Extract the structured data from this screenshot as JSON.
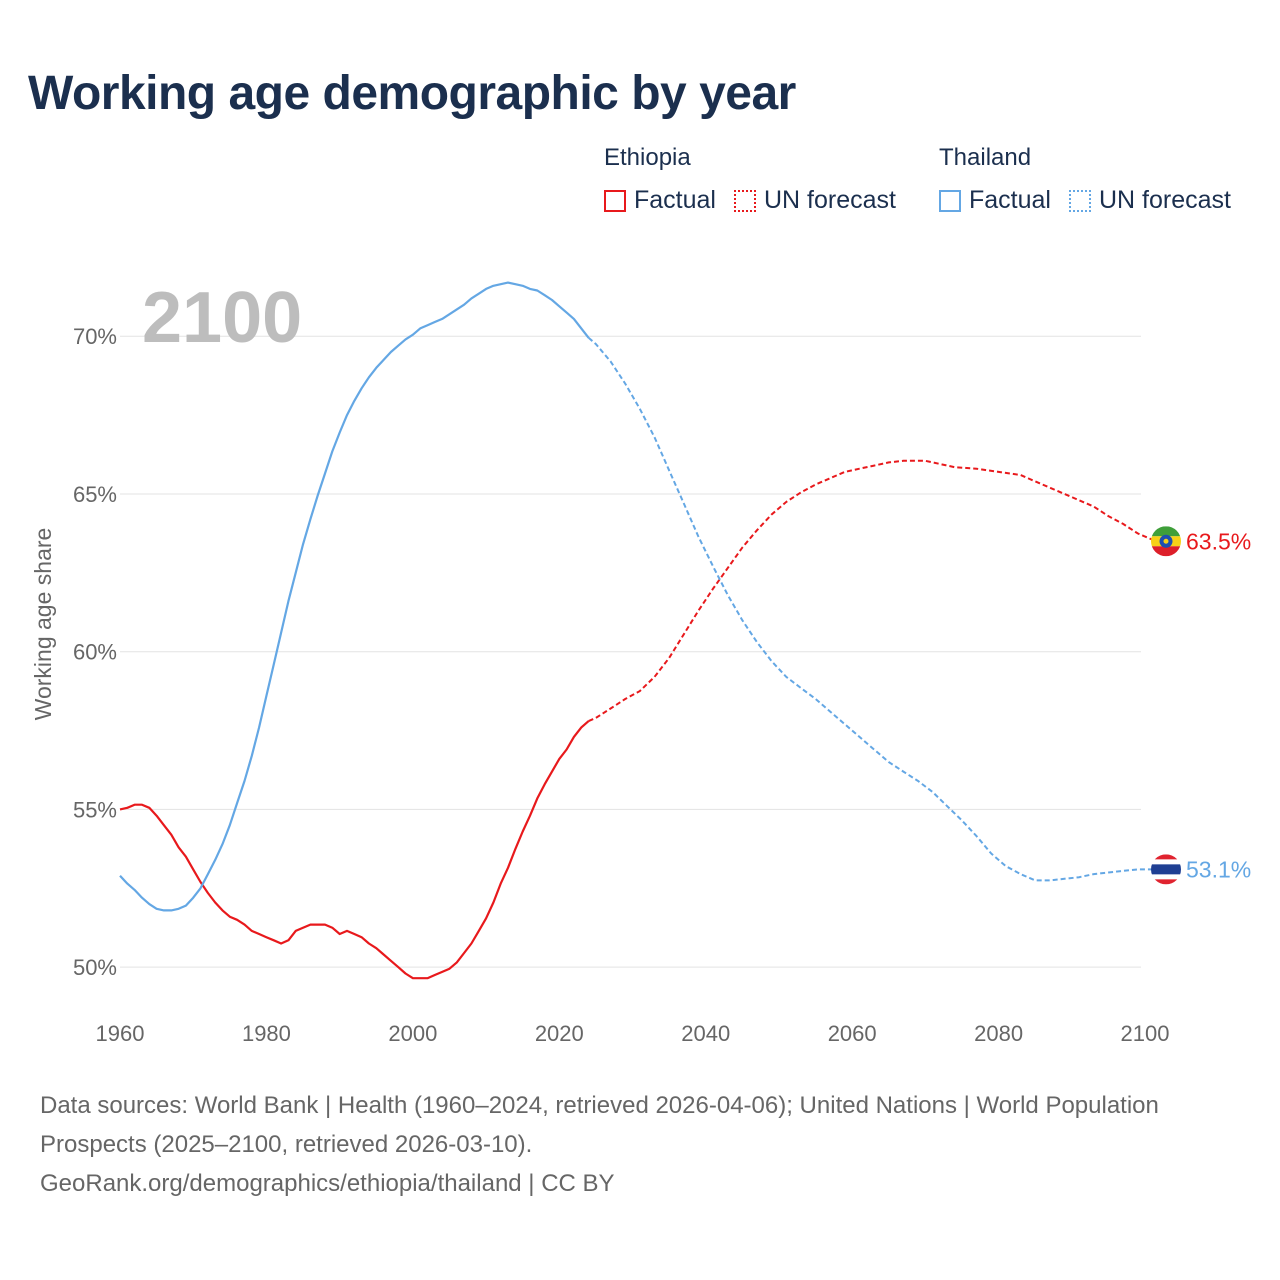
{
  "title": "Working age demographic by year",
  "legend": {
    "groups": [
      {
        "name": "Ethiopia",
        "color": "#e8191c",
        "factual_label": "Factual",
        "forecast_label": "UN forecast"
      },
      {
        "name": "Thailand",
        "color": "#64a7e4",
        "factual_label": "Factual",
        "forecast_label": "UN forecast"
      }
    ]
  },
  "footer": {
    "sources": "Data sources: World Bank | Health (1960–2024, retrieved 2026-04-06); United Nations | World Population Prospects (2025–2100, retrieved 2026-03-10).",
    "link": "GeoRank.org/demographics/ethiopia/thailand | CC BY"
  },
  "chart_data": {
    "type": "line",
    "title": "Working age demographic by year",
    "current_year": "2100",
    "xlabel": "",
    "ylabel": "Working age share",
    "xlim": [
      1960,
      2103
    ],
    "ylim": [
      48.8,
      72.1
    ],
    "x_ticks": [
      1960,
      1980,
      2000,
      2020,
      2040,
      2060,
      2080,
      2100
    ],
    "y_ticks": [
      50,
      55,
      60,
      65,
      70
    ],
    "y_tick_labels": [
      "50%",
      "55%",
      "60%",
      "65%",
      "70%"
    ],
    "grid": true,
    "factual_end_year": 2024,
    "series": [
      {
        "name": "Ethiopia",
        "color": "#e8191c",
        "end_label": "63.5%",
        "flag": "ethiopia-flag",
        "points": [
          [
            1960,
            55.0
          ],
          [
            1961,
            55.05
          ],
          [
            1962,
            55.15
          ],
          [
            1963,
            55.15
          ],
          [
            1964,
            55.05
          ],
          [
            1965,
            54.8
          ],
          [
            1966,
            54.5
          ],
          [
            1967,
            54.2
          ],
          [
            1968,
            53.8
          ],
          [
            1969,
            53.5
          ],
          [
            1970,
            53.1
          ],
          [
            1971,
            52.7
          ],
          [
            1972,
            52.35
          ],
          [
            1973,
            52.05
          ],
          [
            1974,
            51.8
          ],
          [
            1975,
            51.6
          ],
          [
            1976,
            51.5
          ],
          [
            1977,
            51.35
          ],
          [
            1978,
            51.15
          ],
          [
            1979,
            51.05
          ],
          [
            1980,
            50.95
          ],
          [
            1981,
            50.85
          ],
          [
            1982,
            50.75
          ],
          [
            1983,
            50.85
          ],
          [
            1984,
            51.15
          ],
          [
            1985,
            51.25
          ],
          [
            1986,
            51.35
          ],
          [
            1987,
            51.35
          ],
          [
            1988,
            51.35
          ],
          [
            1989,
            51.25
          ],
          [
            1990,
            51.05
          ],
          [
            1991,
            51.15
          ],
          [
            1992,
            51.05
          ],
          [
            1993,
            50.95
          ],
          [
            1994,
            50.75
          ],
          [
            1995,
            50.6
          ],
          [
            1996,
            50.4
          ],
          [
            1997,
            50.2
          ],
          [
            1998,
            50.0
          ],
          [
            1999,
            49.8
          ],
          [
            2000,
            49.65
          ],
          [
            2001,
            49.65
          ],
          [
            2002,
            49.65
          ],
          [
            2003,
            49.75
          ],
          [
            2004,
            49.85
          ],
          [
            2005,
            49.95
          ],
          [
            2006,
            50.15
          ],
          [
            2007,
            50.45
          ],
          [
            2008,
            50.75
          ],
          [
            2009,
            51.15
          ],
          [
            2010,
            51.55
          ],
          [
            2011,
            52.05
          ],
          [
            2012,
            52.65
          ],
          [
            2013,
            53.15
          ],
          [
            2014,
            53.75
          ],
          [
            2015,
            54.3
          ],
          [
            2016,
            54.8
          ],
          [
            2017,
            55.35
          ],
          [
            2018,
            55.8
          ],
          [
            2019,
            56.2
          ],
          [
            2020,
            56.6
          ],
          [
            2021,
            56.9
          ],
          [
            2022,
            57.3
          ],
          [
            2023,
            57.6
          ],
          [
            2024,
            57.8
          ],
          [
            2025,
            57.9
          ],
          [
            2027,
            58.2
          ],
          [
            2029,
            58.5
          ],
          [
            2031,
            58.75
          ],
          [
            2033,
            59.2
          ],
          [
            2035,
            59.8
          ],
          [
            2037,
            60.55
          ],
          [
            2039,
            61.3
          ],
          [
            2041,
            62.0
          ],
          [
            2043,
            62.65
          ],
          [
            2045,
            63.3
          ],
          [
            2047,
            63.85
          ],
          [
            2049,
            64.35
          ],
          [
            2051,
            64.75
          ],
          [
            2053,
            65.05
          ],
          [
            2055,
            65.3
          ],
          [
            2057,
            65.5
          ],
          [
            2059,
            65.7
          ],
          [
            2061,
            65.8
          ],
          [
            2063,
            65.9
          ],
          [
            2065,
            66.0
          ],
          [
            2067,
            66.05
          ],
          [
            2070,
            66.05
          ],
          [
            2072,
            65.95
          ],
          [
            2074,
            65.85
          ],
          [
            2077,
            65.8
          ],
          [
            2080,
            65.7
          ],
          [
            2083,
            65.6
          ],
          [
            2085,
            65.4
          ],
          [
            2087,
            65.2
          ],
          [
            2090,
            64.9
          ],
          [
            2093,
            64.6
          ],
          [
            2095,
            64.3
          ],
          [
            2097,
            64.05
          ],
          [
            2099,
            63.75
          ],
          [
            2101,
            63.55
          ],
          [
            2103,
            63.5
          ]
        ]
      },
      {
        "name": "Thailand",
        "color": "#64a7e4",
        "end_label": "53.1%",
        "flag": "thailand-flag",
        "points": [
          [
            1960,
            52.9
          ],
          [
            1961,
            52.65
          ],
          [
            1962,
            52.45
          ],
          [
            1963,
            52.2
          ],
          [
            1964,
            52.0
          ],
          [
            1965,
            51.85
          ],
          [
            1966,
            51.8
          ],
          [
            1967,
            51.8
          ],
          [
            1968,
            51.85
          ],
          [
            1969,
            51.95
          ],
          [
            1970,
            52.2
          ],
          [
            1971,
            52.5
          ],
          [
            1972,
            52.95
          ],
          [
            1973,
            53.4
          ],
          [
            1974,
            53.9
          ],
          [
            1975,
            54.5
          ],
          [
            1976,
            55.2
          ],
          [
            1977,
            55.9
          ],
          [
            1978,
            56.7
          ],
          [
            1979,
            57.6
          ],
          [
            1980,
            58.6
          ],
          [
            1981,
            59.6
          ],
          [
            1982,
            60.6
          ],
          [
            1983,
            61.6
          ],
          [
            1984,
            62.5
          ],
          [
            1985,
            63.4
          ],
          [
            1986,
            64.2
          ],
          [
            1987,
            64.95
          ],
          [
            1988,
            65.65
          ],
          [
            1989,
            66.35
          ],
          [
            1990,
            66.95
          ],
          [
            1991,
            67.5
          ],
          [
            1992,
            67.95
          ],
          [
            1993,
            68.35
          ],
          [
            1994,
            68.7
          ],
          [
            1995,
            69.0
          ],
          [
            1996,
            69.25
          ],
          [
            1997,
            69.5
          ],
          [
            1998,
            69.7
          ],
          [
            1999,
            69.9
          ],
          [
            2000,
            70.05
          ],
          [
            2001,
            70.25
          ],
          [
            2002,
            70.35
          ],
          [
            2003,
            70.45
          ],
          [
            2004,
            70.55
          ],
          [
            2005,
            70.7
          ],
          [
            2006,
            70.85
          ],
          [
            2007,
            71.0
          ],
          [
            2008,
            71.2
          ],
          [
            2009,
            71.35
          ],
          [
            2010,
            71.5
          ],
          [
            2011,
            71.6
          ],
          [
            2012,
            71.65
          ],
          [
            2013,
            71.7
          ],
          [
            2014,
            71.65
          ],
          [
            2015,
            71.6
          ],
          [
            2016,
            71.5
          ],
          [
            2017,
            71.45
          ],
          [
            2018,
            71.3
          ],
          [
            2019,
            71.15
          ],
          [
            2020,
            70.95
          ],
          [
            2021,
            70.75
          ],
          [
            2022,
            70.55
          ],
          [
            2023,
            70.25
          ],
          [
            2024,
            69.95
          ],
          [
            2025,
            69.75
          ],
          [
            2027,
            69.2
          ],
          [
            2029,
            68.5
          ],
          [
            2031,
            67.7
          ],
          [
            2033,
            66.8
          ],
          [
            2035,
            65.75
          ],
          [
            2037,
            64.7
          ],
          [
            2039,
            63.65
          ],
          [
            2041,
            62.7
          ],
          [
            2043,
            61.8
          ],
          [
            2045,
            61.0
          ],
          [
            2047,
            60.3
          ],
          [
            2049,
            59.7
          ],
          [
            2051,
            59.2
          ],
          [
            2053,
            58.85
          ],
          [
            2055,
            58.5
          ],
          [
            2057,
            58.1
          ],
          [
            2059,
            57.7
          ],
          [
            2061,
            57.3
          ],
          [
            2063,
            56.9
          ],
          [
            2065,
            56.5
          ],
          [
            2067,
            56.2
          ],
          [
            2069,
            55.9
          ],
          [
            2071,
            55.55
          ],
          [
            2073,
            55.1
          ],
          [
            2075,
            54.65
          ],
          [
            2077,
            54.15
          ],
          [
            2079,
            53.6
          ],
          [
            2081,
            53.2
          ],
          [
            2083,
            52.95
          ],
          [
            2085,
            52.75
          ],
          [
            2087,
            52.75
          ],
          [
            2089,
            52.8
          ],
          [
            2091,
            52.85
          ],
          [
            2093,
            52.95
          ],
          [
            2095,
            53.0
          ],
          [
            2097,
            53.05
          ],
          [
            2099,
            53.1
          ],
          [
            2101,
            53.1
          ],
          [
            2103,
            53.1
          ]
        ]
      }
    ]
  }
}
